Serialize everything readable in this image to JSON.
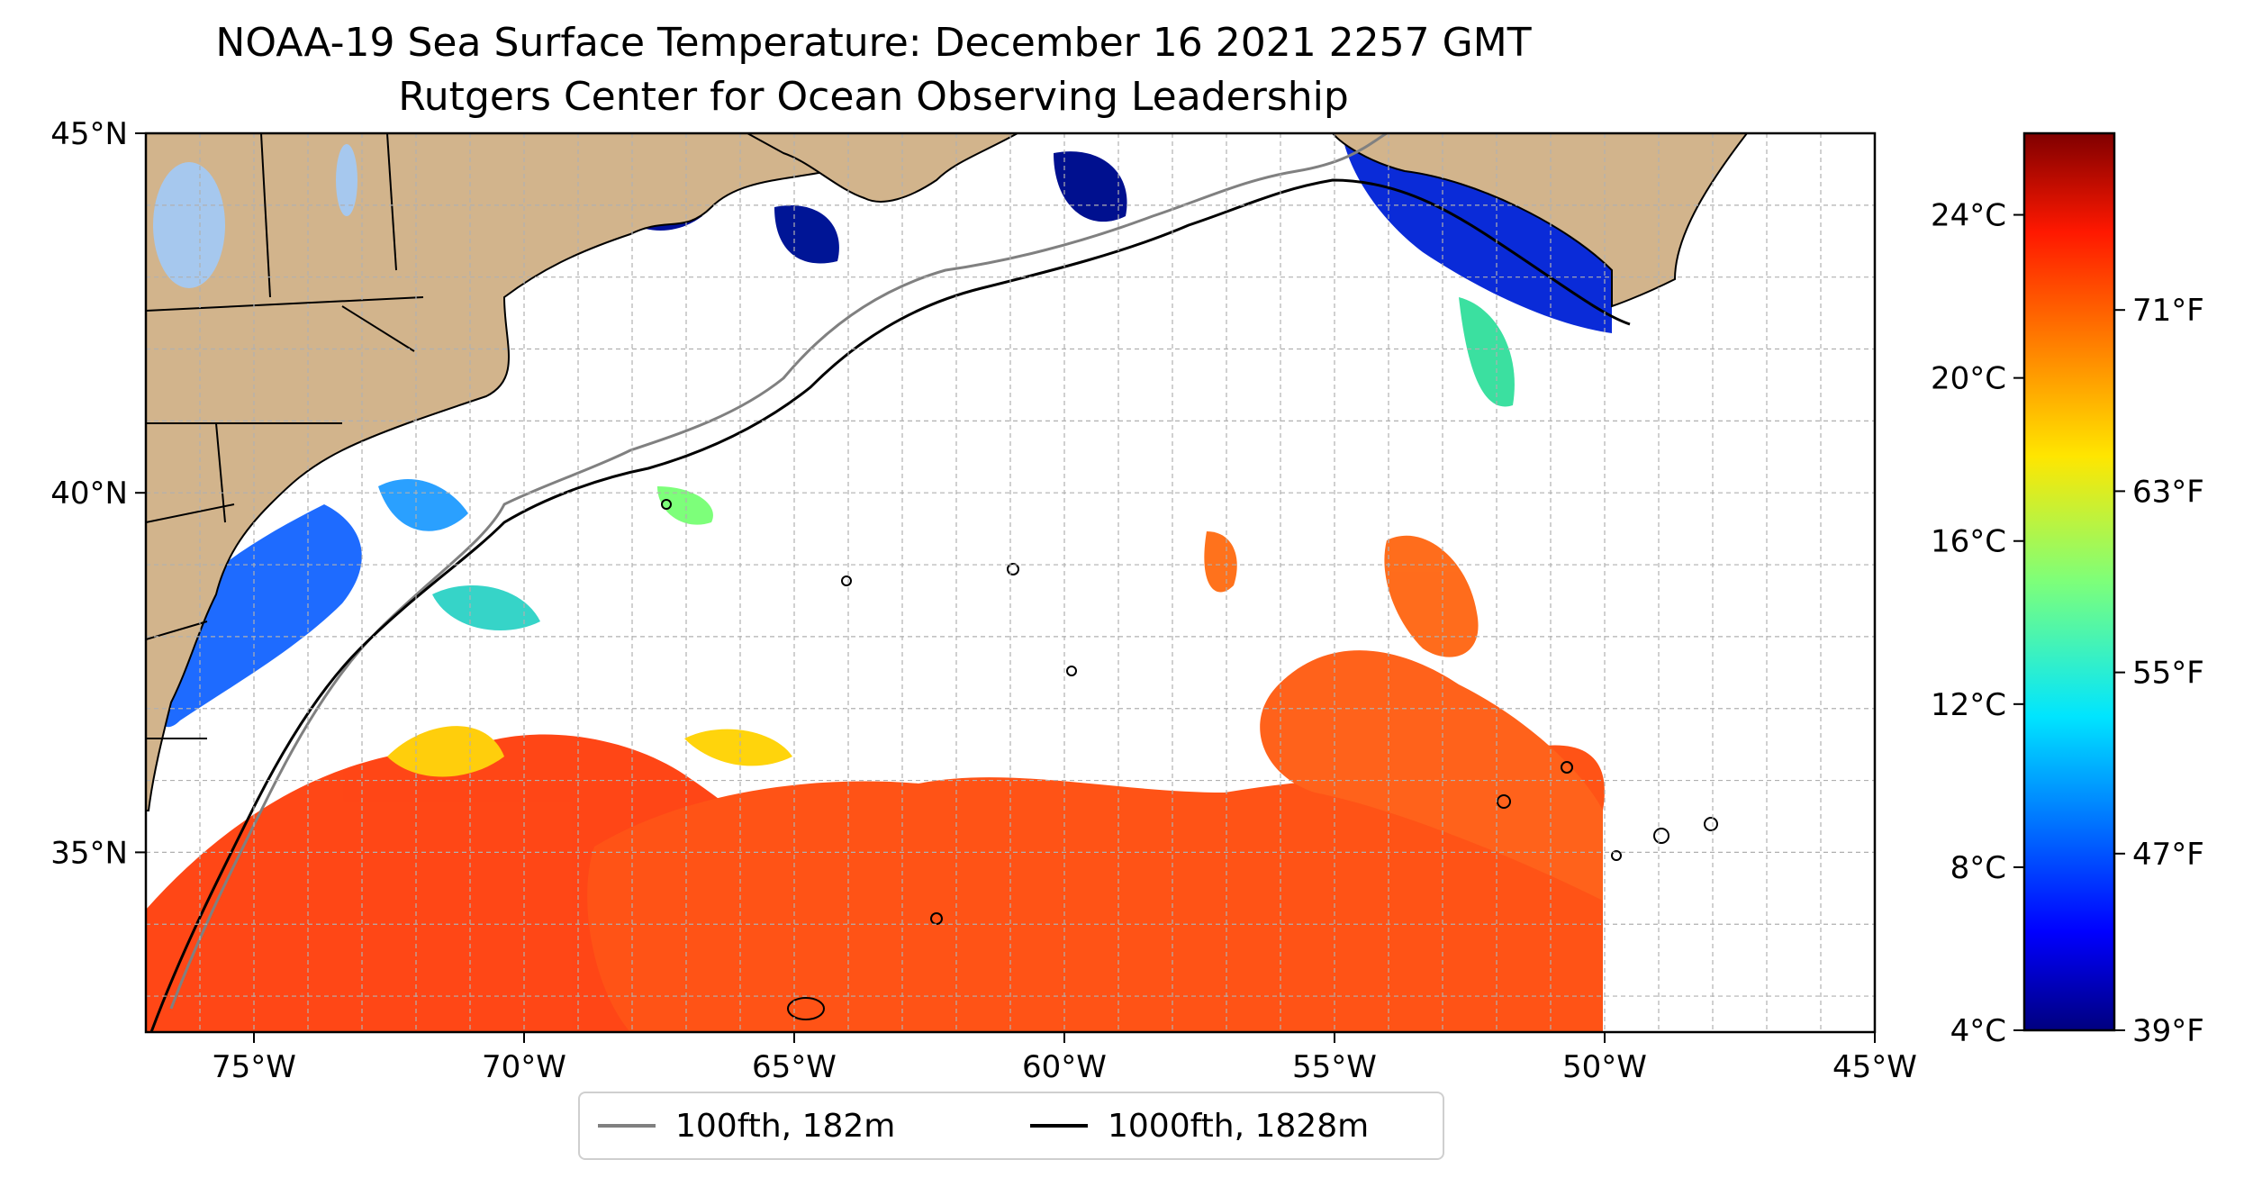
{
  "title": "NOAA-19 Sea Surface Temperature: December 16 2021 2257 GMT",
  "subtitle": "Rutgers Center for Ocean Observing Leadership",
  "map": {
    "lon_range": [
      -77,
      -45
    ],
    "lat_range": [
      32.5,
      45
    ],
    "lon_ticks": [
      {
        "value": -75,
        "label": "75°W"
      },
      {
        "value": -70,
        "label": "70°W"
      },
      {
        "value": -65,
        "label": "65°W"
      },
      {
        "value": -60,
        "label": "60°W"
      },
      {
        "value": -55,
        "label": "55°W"
      },
      {
        "value": -50,
        "label": "50°W"
      },
      {
        "value": -45,
        "label": "45°W"
      }
    ],
    "lat_ticks": [
      {
        "value": 45,
        "label": "45°N"
      },
      {
        "value": 40,
        "label": "40°N"
      },
      {
        "value": 35,
        "label": "35°N"
      }
    ],
    "gridlines": true,
    "grid_step_degrees": 1,
    "colors": {
      "land": "#d2b48c",
      "lakes": "#a6c8ee",
      "ocean_no_data": "#ffffff",
      "contour_100fth": "#808080",
      "contour_1000fth": "#000000",
      "grid": "#b0b0b0"
    }
  },
  "colorbar": {
    "colormap": "jet",
    "range_c": [
      4,
      26
    ],
    "celsius_ticks": [
      {
        "value": 24,
        "label": "24°C"
      },
      {
        "value": 20,
        "label": "20°C"
      },
      {
        "value": 16,
        "label": "16°C"
      },
      {
        "value": 12,
        "label": "12°C"
      },
      {
        "value": 8,
        "label": "8°C"
      },
      {
        "value": 4,
        "label": "4°C"
      }
    ],
    "fahrenheit_ticks": [
      {
        "value": 71,
        "label": "71°F"
      },
      {
        "value": 63,
        "label": "63°F"
      },
      {
        "value": 55,
        "label": "55°F"
      },
      {
        "value": 47,
        "label": "47°F"
      },
      {
        "value": 39,
        "label": "39°F"
      }
    ]
  },
  "legend": {
    "placement": "bottom-center",
    "items": [
      {
        "label": "100fth, 182m",
        "color": "#808080"
      },
      {
        "label": "1000fth, 1828m",
        "color": "#000000"
      }
    ]
  }
}
